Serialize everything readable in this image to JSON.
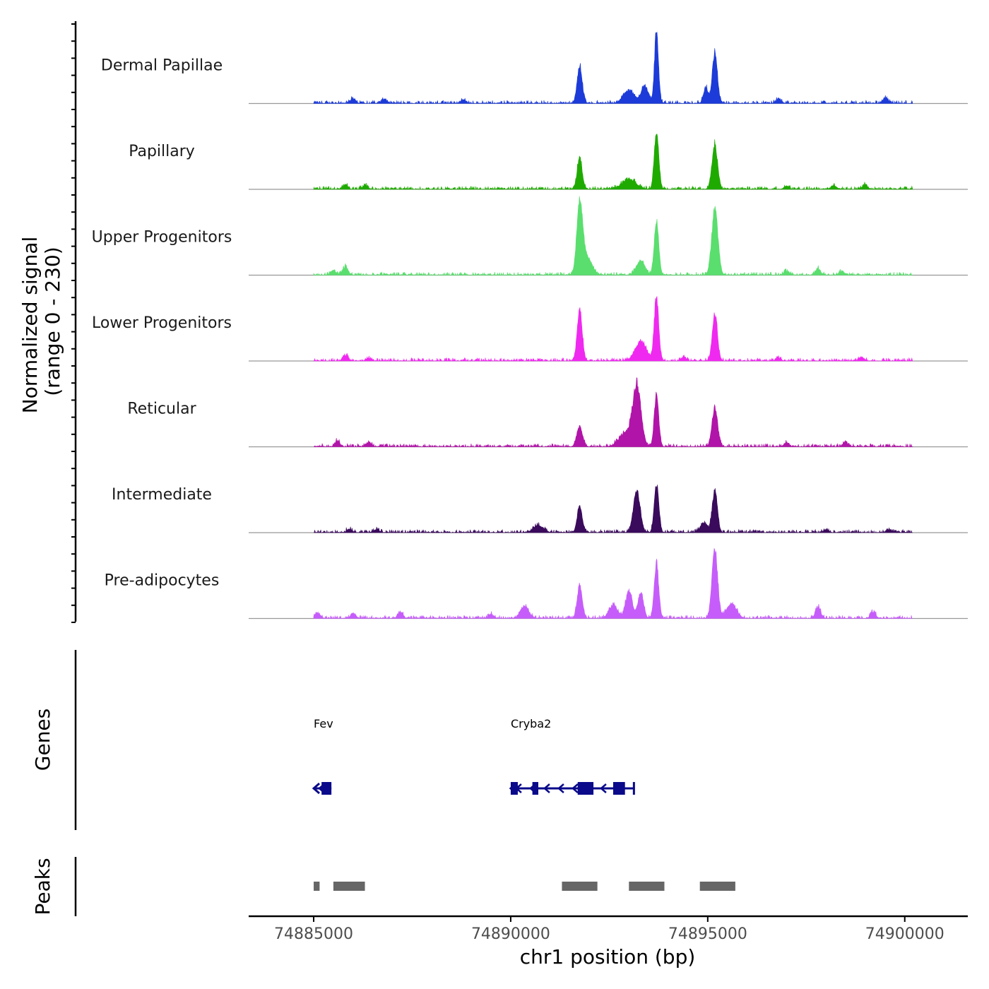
{
  "chart_data": {
    "type": "area",
    "title": "",
    "xlabel": "chr1 position (bp)",
    "ylabel": "Normalized signal",
    "ylabel_sub": "(range 0 - 230)",
    "chromosome": "chr1",
    "xlim": [
      74883350,
      74901600
    ],
    "ylim": [
      0,
      230
    ],
    "x_ticks": [
      74885000,
      74890000,
      74895000,
      74900000
    ],
    "x_tick_labels": [
      "74885000",
      "74890000",
      "74895000",
      "74900000"
    ],
    "signal_range": [
      74885000,
      74900200
    ],
    "tracks": [
      {
        "name": "Dermal Papillae",
        "color": "#1c3bd8",
        "peaks": [
          [
            74891750,
            118,
            90
          ],
          [
            74893000,
            40,
            200
          ],
          [
            74893400,
            55,
            120
          ],
          [
            74893700,
            230,
            70
          ],
          [
            74894950,
            50,
            80
          ],
          [
            74895180,
            160,
            90
          ]
        ],
        "small": [
          [
            74886000,
            18
          ],
          [
            74886800,
            15
          ],
          [
            74888800,
            14
          ],
          [
            74896800,
            16
          ],
          [
            74899500,
            20
          ]
        ]
      },
      {
        "name": "Papillary",
        "color": "#1faa00",
        "peaks": [
          [
            74891750,
            95,
            90
          ],
          [
            74893000,
            30,
            250
          ],
          [
            74893700,
            180,
            80
          ],
          [
            74895180,
            140,
            100
          ]
        ],
        "small": [
          [
            74885800,
            15
          ],
          [
            74886300,
            12
          ],
          [
            74897000,
            10
          ],
          [
            74898200,
            15
          ],
          [
            74899000,
            14
          ]
        ]
      },
      {
        "name": "Upper Progenitors",
        "color": "#5ade6e",
        "peaks": [
          [
            74891750,
            205,
            100
          ],
          [
            74891900,
            60,
            200
          ],
          [
            74893300,
            45,
            150
          ],
          [
            74893700,
            170,
            80
          ],
          [
            74895180,
            205,
            110
          ]
        ],
        "small": [
          [
            74885800,
            32
          ],
          [
            74885500,
            15
          ],
          [
            74897000,
            15
          ],
          [
            74897800,
            20
          ],
          [
            74898400,
            15
          ]
        ]
      },
      {
        "name": "Lower Progenitors",
        "color": "#f029f0",
        "peaks": [
          [
            74891750,
            158,
            90
          ],
          [
            74893300,
            60,
            200
          ],
          [
            74893700,
            198,
            80
          ],
          [
            74895180,
            148,
            90
          ]
        ],
        "small": [
          [
            74885800,
            20
          ],
          [
            74886400,
            10
          ],
          [
            74894400,
            12
          ],
          [
            74896800,
            10
          ],
          [
            74898900,
            12
          ]
        ]
      },
      {
        "name": "Reticular",
        "color": "#b114a8",
        "peaks": [
          [
            74891750,
            62,
            100
          ],
          [
            74893200,
            190,
            150
          ],
          [
            74892900,
            40,
            220
          ],
          [
            74893700,
            163,
            80
          ],
          [
            74895180,
            120,
            100
          ]
        ],
        "small": [
          [
            74885600,
            20
          ],
          [
            74886400,
            15
          ],
          [
            74897000,
            14
          ],
          [
            74898500,
            18
          ]
        ]
      },
      {
        "name": "Intermediate",
        "color": "#3a0a5c",
        "peaks": [
          [
            74890700,
            22,
            180
          ],
          [
            74891750,
            80,
            90
          ],
          [
            74893200,
            130,
            120
          ],
          [
            74893700,
            150,
            80
          ],
          [
            74895180,
            135,
            90
          ],
          [
            74894900,
            30,
            130
          ]
        ],
        "small": [
          [
            74885900,
            12
          ],
          [
            74886600,
            10
          ],
          [
            74898000,
            10
          ],
          [
            74899600,
            10
          ]
        ]
      },
      {
        "name": "Pre-adipocytes",
        "color": "#c65dfa",
        "peaks": [
          [
            74890350,
            38,
            150
          ],
          [
            74891750,
            100,
            90
          ],
          [
            74892600,
            42,
            150
          ],
          [
            74893000,
            85,
            120
          ],
          [
            74893300,
            80,
            100
          ],
          [
            74893700,
            170,
            80
          ],
          [
            74895180,
            215,
            100
          ],
          [
            74895600,
            45,
            180
          ]
        ],
        "small": [
          [
            74885100,
            22
          ],
          [
            74886000,
            18
          ],
          [
            74887200,
            22
          ],
          [
            74889500,
            15
          ],
          [
            74897800,
            40
          ],
          [
            74899200,
            25
          ]
        ]
      }
    ],
    "gene_track_label": "Genes",
    "genes": [
      {
        "name": "Fev",
        "start": 74885000,
        "end": 74885450,
        "strand": "-",
        "exons": [
          [
            74885200,
            74885450
          ]
        ]
      },
      {
        "name": "Cryba2",
        "start": 74890000,
        "end": 74893150,
        "strand": "-",
        "exons": [
          [
            74890000,
            74890180
          ],
          [
            74890550,
            74890700
          ],
          [
            74891700,
            74892100
          ],
          [
            74892600,
            74892900
          ],
          [
            74893100,
            74893150
          ]
        ]
      }
    ],
    "peak_track_label": "Peaks",
    "peak_color": "#666666",
    "peaks": [
      [
        74885000,
        74885150
      ],
      [
        74885500,
        74886300
      ],
      [
        74891300,
        74892200
      ],
      [
        74893000,
        74893900
      ],
      [
        74894800,
        74895700
      ]
    ]
  }
}
